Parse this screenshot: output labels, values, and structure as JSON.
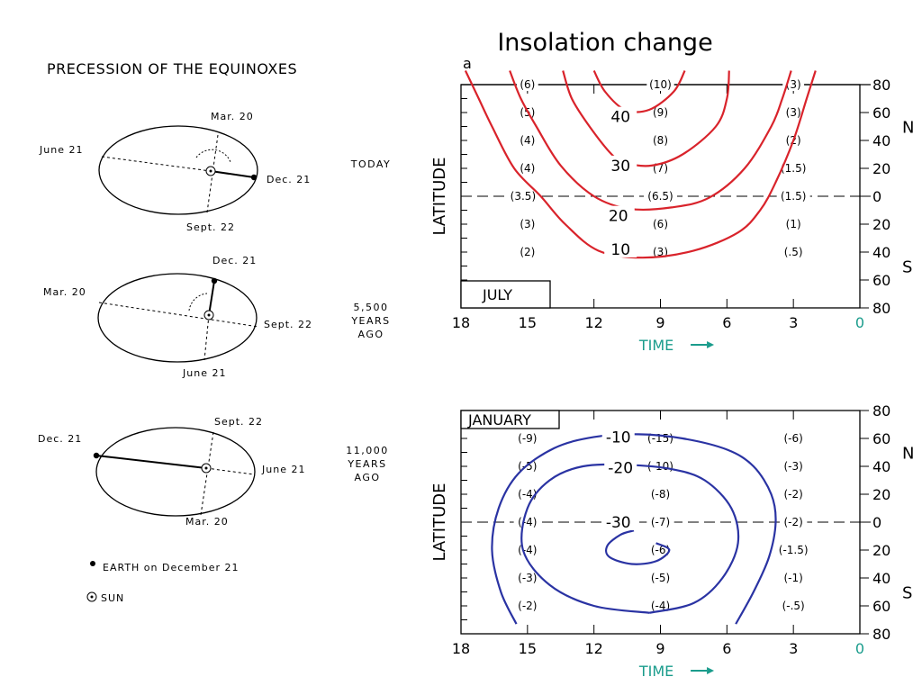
{
  "title": "Insolation change",
  "left": {
    "heading": "PRECESSION OF THE EQUINOXES",
    "orbits": [
      {
        "label": "TODAY",
        "labels": {
          "top": "Mar. 20",
          "left": "June 21",
          "right": "Dec. 21",
          "bottom": "Sept. 22"
        }
      },
      {
        "label": "5,500\nYEARS\nAGO",
        "labels": {
          "top": "Dec. 21",
          "left": "Mar. 20",
          "right": "Sept. 22",
          "bottom": "June 21"
        }
      },
      {
        "label": "11,000\nYEARS\nAGO",
        "labels": {
          "top": "Sept. 22",
          "left": "Dec. 21",
          "right": "June 21",
          "bottom": "Mar. 20"
        }
      }
    ],
    "legend": {
      "earth": "EARTH on December 21",
      "sun": "SUN"
    }
  },
  "chart_data": [
    {
      "type": "contour",
      "panel_letter": "a",
      "month": "JULY",
      "color": "#d9232b",
      "xlabel": "TIME",
      "ylabel": "LATITUDE",
      "xlim": [
        18,
        0
      ],
      "ylim": [
        -80,
        80
      ],
      "x_ticks": [
        "18",
        "15",
        "12",
        "9",
        "6",
        "3",
        "0"
      ],
      "y_ticks": [
        "80",
        "60",
        "40",
        "20",
        "0",
        "20",
        "40",
        "60",
        "80"
      ],
      "hemisphere_labels": {
        "north": "N",
        "south": "S"
      },
      "contours": [
        {
          "level": "10",
          "label": "10",
          "points": [
            [
              17.8,
              90
            ],
            [
              17.2,
              70
            ],
            [
              16.6,
              50
            ],
            [
              15.6,
              20
            ],
            [
              14.4,
              0
            ],
            [
              13.3,
              -20
            ],
            [
              11.8,
              -39
            ],
            [
              9.8,
              -44
            ],
            [
              7.5,
              -39
            ],
            [
              5.5,
              -26
            ],
            [
              4.5,
              -10
            ],
            [
              3.8,
              10
            ],
            [
              3.0,
              40
            ],
            [
              2.4,
              70
            ],
            [
              2.0,
              90
            ]
          ]
        },
        {
          "level": "20",
          "label": "20",
          "points": [
            [
              15.8,
              90
            ],
            [
              15.3,
              70
            ],
            [
              14.6,
              50
            ],
            [
              13.5,
              22
            ],
            [
              12.0,
              0
            ],
            [
              10.4,
              -9
            ],
            [
              8.5,
              -8
            ],
            [
              6.8,
              -1
            ],
            [
              5.2,
              20
            ],
            [
              4.0,
              50
            ],
            [
              3.5,
              70
            ],
            [
              3.1,
              90
            ]
          ]
        },
        {
          "level": "30",
          "label": "30",
          "points": [
            [
              13.4,
              90
            ],
            [
              13.0,
              70
            ],
            [
              12.2,
              50
            ],
            [
              11.2,
              30
            ],
            [
              10.6,
              24
            ],
            [
              9.4,
              22
            ],
            [
              8.0,
              30
            ],
            [
              6.5,
              50
            ],
            [
              6.0,
              70
            ],
            [
              5.9,
              90
            ]
          ]
        },
        {
          "level": "40",
          "label": "40",
          "points": [
            [
              12.0,
              90
            ],
            [
              11.5,
              75
            ],
            [
              10.6,
              62
            ],
            [
              9.5,
              62
            ],
            [
              8.4,
              75
            ],
            [
              7.9,
              90
            ]
          ]
        }
      ],
      "value_labels": [
        {
          "x": 15.0,
          "y": 80,
          "text": "(6)"
        },
        {
          "x": 9.0,
          "y": 80,
          "text": "(10)"
        },
        {
          "x": 3.0,
          "y": 80,
          "text": "(3)"
        },
        {
          "x": 15.0,
          "y": 60,
          "text": "(5)"
        },
        {
          "x": 9.0,
          "y": 60,
          "text": "(9)"
        },
        {
          "x": 3.0,
          "y": 60,
          "text": "(3)"
        },
        {
          "x": 15.0,
          "y": 40,
          "text": "(4)"
        },
        {
          "x": 9.0,
          "y": 40,
          "text": "(8)"
        },
        {
          "x": 3.0,
          "y": 40,
          "text": "(2)"
        },
        {
          "x": 15.0,
          "y": 20,
          "text": "(4)"
        },
        {
          "x": 9.0,
          "y": 20,
          "text": "(7)"
        },
        {
          "x": 3.0,
          "y": 20,
          "text": "(1.5)"
        },
        {
          "x": 15.2,
          "y": 0,
          "text": "(3.5)"
        },
        {
          "x": 9.0,
          "y": 0,
          "text": "(6.5)"
        },
        {
          "x": 3.0,
          "y": 0,
          "text": "(1.5)"
        },
        {
          "x": 15.0,
          "y": -20,
          "text": "(3)"
        },
        {
          "x": 9.0,
          "y": -20,
          "text": "(6)"
        },
        {
          "x": 3.0,
          "y": -20,
          "text": "(1)"
        },
        {
          "x": 15.0,
          "y": -40,
          "text": "(2)"
        },
        {
          "x": 9.0,
          "y": -40,
          "text": "(3)"
        },
        {
          "x": 3.0,
          "y": -40,
          "text": "(.5)"
        }
      ]
    },
    {
      "type": "contour",
      "month": "JANUARY",
      "color": "#2a33a3",
      "xlabel": "TIME",
      "ylabel": "LATITUDE",
      "xlim": [
        18,
        0
      ],
      "ylim": [
        -80,
        80
      ],
      "x_ticks": [
        "18",
        "15",
        "12",
        "9",
        "6",
        "3",
        "0"
      ],
      "y_ticks": [
        "80",
        "60",
        "40",
        "20",
        "0",
        "20",
        "40",
        "60",
        "80"
      ],
      "hemisphere_labels": {
        "north": "N",
        "south": "S"
      },
      "contours": [
        {
          "level": "-10",
          "label": "-10",
          "points": [
            [
              15.5,
              -73
            ],
            [
              16.2,
              -50
            ],
            [
              16.6,
              -20
            ],
            [
              16.3,
              10
            ],
            [
              15.4,
              35
            ],
            [
              13.8,
              53
            ],
            [
              12.0,
              61
            ],
            [
              10.0,
              63
            ],
            [
              8.0,
              60
            ],
            [
              6.0,
              52
            ],
            [
              4.8,
              40
            ],
            [
              4.0,
              20
            ],
            [
              3.8,
              0
            ],
            [
              4.1,
              -25
            ],
            [
              4.8,
              -50
            ],
            [
              5.6,
              -73
            ]
          ]
        },
        {
          "level": "-20",
          "label": "-20",
          "points": [
            [
              9.5,
              -65
            ],
            [
              12.0,
              -60
            ],
            [
              14.0,
              -45
            ],
            [
              15.2,
              -20
            ],
            [
              15.0,
              10
            ],
            [
              14.0,
              30
            ],
            [
              12.5,
              40
            ],
            [
              10.5,
              41
            ],
            [
              8.5,
              38
            ],
            [
              7.0,
              30
            ],
            [
              5.8,
              10
            ],
            [
              5.5,
              -15
            ],
            [
              6.2,
              -40
            ],
            [
              7.5,
              -58
            ],
            [
              9.5,
              -65
            ]
          ]
        },
        {
          "level": "-30",
          "label": "-30",
          "points": [
            [
              9.2,
              -15
            ],
            [
              8.6,
              -20
            ],
            [
              9.2,
              -28
            ],
            [
              10.3,
              -30
            ],
            [
              11.3,
              -25
            ],
            [
              11.4,
              -17
            ],
            [
              10.8,
              -9
            ],
            [
              10.2,
              -6
            ]
          ]
        }
      ],
      "value_labels": [
        {
          "x": 15.0,
          "y": 60,
          "text": "(-9)"
        },
        {
          "x": 9.0,
          "y": 60,
          "text": "(-15)"
        },
        {
          "x": 3.0,
          "y": 60,
          "text": "(-6)"
        },
        {
          "x": 15.0,
          "y": 40,
          "text": "(-5)"
        },
        {
          "x": 9.0,
          "y": 40,
          "text": "(-10)"
        },
        {
          "x": 3.0,
          "y": 40,
          "text": "(-3)"
        },
        {
          "x": 15.0,
          "y": 20,
          "text": "(-4)"
        },
        {
          "x": 9.0,
          "y": 20,
          "text": "(-8)"
        },
        {
          "x": 3.0,
          "y": 20,
          "text": "(-2)"
        },
        {
          "x": 15.0,
          "y": 0,
          "text": "(-4)"
        },
        {
          "x": 9.0,
          "y": 0,
          "text": "(-7)"
        },
        {
          "x": 3.0,
          "y": 0,
          "text": "(-2)"
        },
        {
          "x": 15.0,
          "y": -20,
          "text": "(-4)"
        },
        {
          "x": 9.0,
          "y": -20,
          "text": "(-6)"
        },
        {
          "x": 3.0,
          "y": -20,
          "text": "(-1.5)"
        },
        {
          "x": 15.0,
          "y": -40,
          "text": "(-3)"
        },
        {
          "x": 9.0,
          "y": -40,
          "text": "(-5)"
        },
        {
          "x": 3.0,
          "y": -40,
          "text": "(-1)"
        },
        {
          "x": 15.0,
          "y": -60,
          "text": "(-2)"
        },
        {
          "x": 9.0,
          "y": -60,
          "text": "(-4)"
        },
        {
          "x": 3.0,
          "y": -60,
          "text": "(-.5)"
        }
      ]
    }
  ]
}
